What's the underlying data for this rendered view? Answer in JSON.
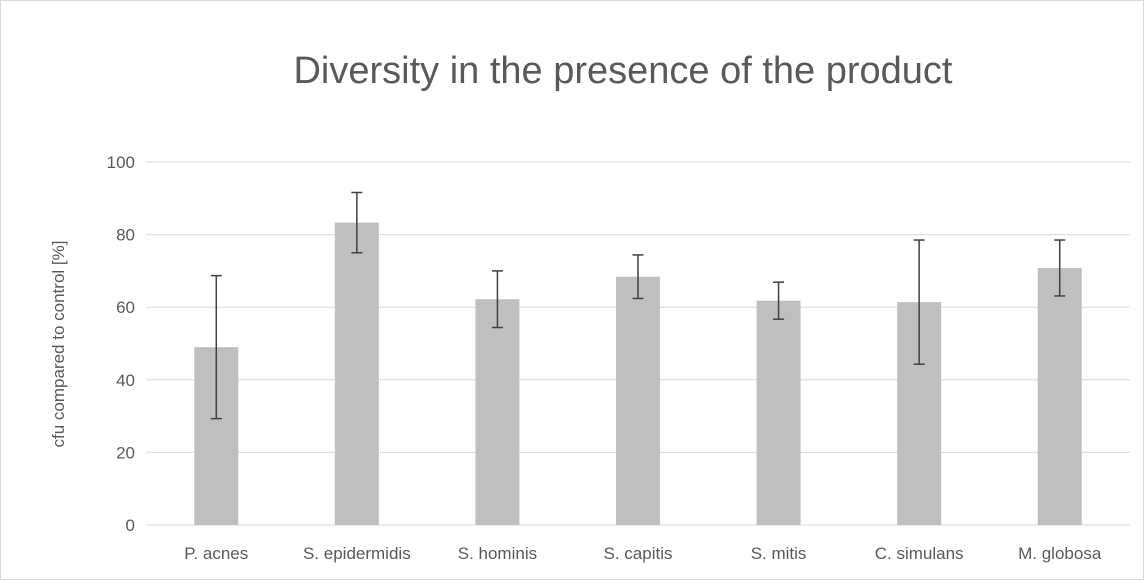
{
  "chart_data": {
    "type": "bar",
    "title": "Diversity in the presence of the product",
    "xlabel": "",
    "ylabel": "cfu compared to control [%]",
    "categories": [
      "P. acnes",
      "S. epidermidis",
      "S. hominis",
      "S. capitis",
      "S. mitis",
      "C. simulans",
      "M. globosa"
    ],
    "values": [
      49,
      83.3,
      62.2,
      68.4,
      61.8,
      61.4,
      70.8
    ],
    "error": [
      19.7,
      8.3,
      7.8,
      6.0,
      5.1,
      17.1,
      7.7
    ],
    "ylim": [
      0,
      100
    ],
    "yticks": [
      0,
      20,
      40,
      60,
      80,
      100
    ],
    "grid": true,
    "legend": "none",
    "colors": {
      "bar": "#bfbfbf",
      "error_bar": "#404040",
      "grid": "#d9d9d9",
      "text": "#595959"
    }
  }
}
